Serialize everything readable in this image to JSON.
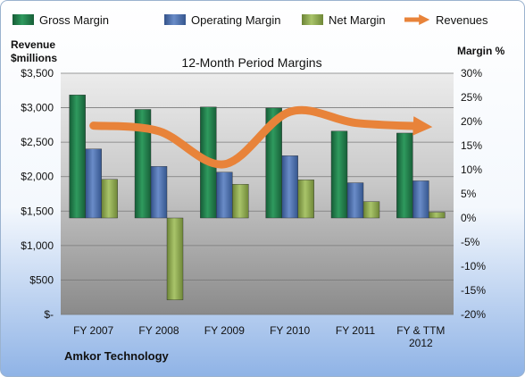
{
  "chart_data": {
    "type": "bar",
    "title": "12-Month Period Margins",
    "company": "Amkor Technology",
    "categories": [
      [
        "FY 2007"
      ],
      [
        "FY 2008"
      ],
      [
        "FY 2009"
      ],
      [
        "FY 2010"
      ],
      [
        "FY 2011"
      ],
      [
        "FY & TTM",
        "2012"
      ]
    ],
    "left_axis": {
      "label_lines": [
        "Revenue",
        "$millions"
      ],
      "range": [
        0,
        3500
      ],
      "ticks": [
        {
          "value": 0,
          "label": "$-"
        },
        {
          "value": 500,
          "label": "$500"
        },
        {
          "value": 1000,
          "label": "$1,000"
        },
        {
          "value": 1500,
          "label": "$1,500"
        },
        {
          "value": 2000,
          "label": "$2,000"
        },
        {
          "value": 2500,
          "label": "$2,500"
        },
        {
          "value": 3000,
          "label": "$3,000"
        },
        {
          "value": 3500,
          "label": "$3,500"
        }
      ]
    },
    "right_axis": {
      "label": "Margin %",
      "range": [
        -20,
        30
      ],
      "ticks": [
        {
          "value": -20,
          "label": "-20%"
        },
        {
          "value": -15,
          "label": "-15%"
        },
        {
          "value": -10,
          "label": "-10%"
        },
        {
          "value": -5,
          "label": "-5%"
        },
        {
          "value": 0,
          "label": "0%"
        },
        {
          "value": 5,
          "label": "5%"
        },
        {
          "value": 10,
          "label": "10%"
        },
        {
          "value": 15,
          "label": "15%"
        },
        {
          "value": 20,
          "label": "20%"
        },
        {
          "value": 25,
          "label": "25%"
        },
        {
          "value": 30,
          "label": "30%"
        }
      ]
    },
    "series": [
      {
        "name": "Gross Margin",
        "axis": "right",
        "kind": "bar",
        "color": "#1f7a4a",
        "values": [
          25.5,
          22.5,
          23,
          22.8,
          18,
          17.6
        ]
      },
      {
        "name": "Operating Margin",
        "axis": "right",
        "kind": "bar",
        "color": "#4a6fb0",
        "values": [
          14.3,
          10.7,
          9.5,
          12.9,
          7.3,
          7.7
        ]
      },
      {
        "name": "Net Margin",
        "axis": "right",
        "kind": "bar",
        "color": "#8aa64a",
        "values": [
          8,
          -17,
          7,
          7.9,
          3.4,
          1.2
        ]
      },
      {
        "name": "Revenues",
        "axis": "left",
        "kind": "line",
        "color": "#e8833a",
        "values": [
          2740,
          2660,
          2180,
          2940,
          2780,
          2730
        ]
      }
    ],
    "grid": true,
    "legend": "top"
  }
}
